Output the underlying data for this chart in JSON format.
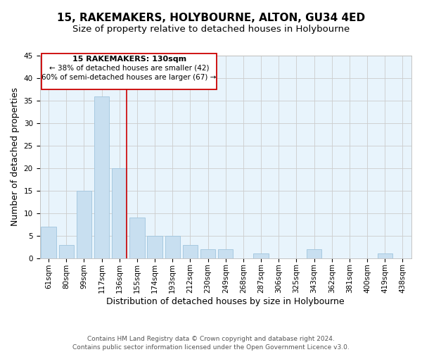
{
  "title": "15, RAKEMAKERS, HOLYBOURNE, ALTON, GU34 4ED",
  "subtitle": "Size of property relative to detached houses in Holybourne",
  "xlabel": "Distribution of detached houses by size in Holybourne",
  "ylabel": "Number of detached properties",
  "bin_labels": [
    "61sqm",
    "80sqm",
    "99sqm",
    "117sqm",
    "136sqm",
    "155sqm",
    "174sqm",
    "193sqm",
    "212sqm",
    "230sqm",
    "249sqm",
    "268sqm",
    "287sqm",
    "306sqm",
    "325sqm",
    "343sqm",
    "362sqm",
    "381sqm",
    "400sqm",
    "419sqm",
    "438sqm"
  ],
  "bar_heights": [
    7,
    3,
    15,
    36,
    20,
    9,
    5,
    5,
    3,
    2,
    2,
    0,
    1,
    0,
    0,
    2,
    0,
    0,
    0,
    1,
    0
  ],
  "bar_color": "#c8dff0",
  "bar_edge_color": "#a0c4de",
  "vline_x_index": 4,
  "vline_color": "#cc0000",
  "ylim": [
    0,
    45
  ],
  "yticks": [
    0,
    5,
    10,
    15,
    20,
    25,
    30,
    35,
    40,
    45
  ],
  "annotation_title": "15 RAKEMAKERS: 130sqm",
  "annotation_line1": "← 38% of detached houses are smaller (42)",
  "annotation_line2": "60% of semi-detached houses are larger (67) →",
  "footer_line1": "Contains HM Land Registry data © Crown copyright and database right 2024.",
  "footer_line2": "Contains public sector information licensed under the Open Government Licence v3.0.",
  "bg_color": "#ffffff",
  "plot_bg_color": "#e8f4fc",
  "grid_color": "#cccccc",
  "title_fontsize": 11,
  "subtitle_fontsize": 9.5,
  "axis_label_fontsize": 9,
  "tick_fontsize": 7.5,
  "footer_fontsize": 6.5
}
